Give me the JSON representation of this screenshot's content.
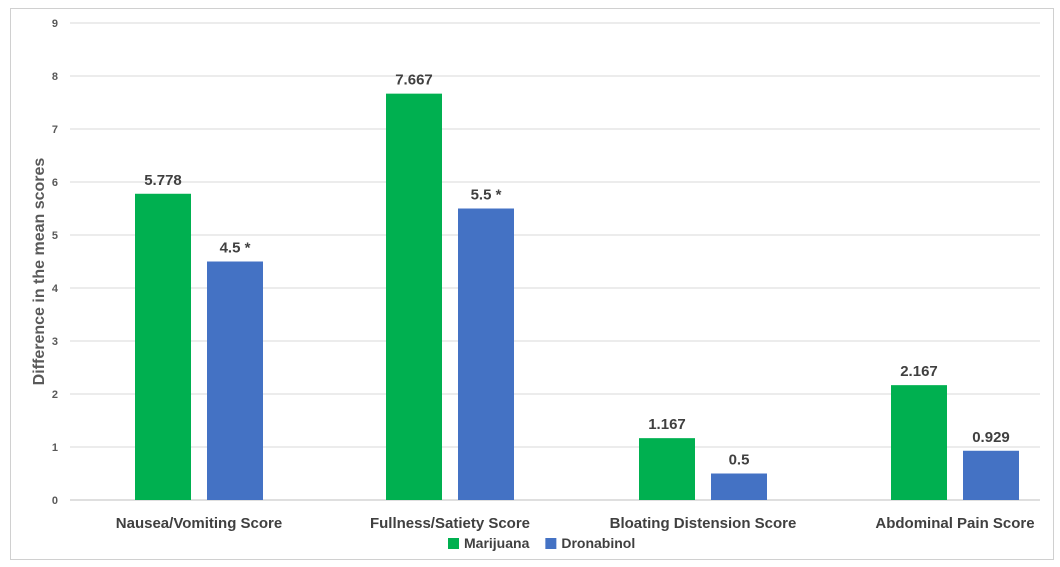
{
  "chart_data": {
    "type": "bar",
    "title": "",
    "xlabel": "",
    "ylabel": "Difference in the mean scores",
    "ylim": [
      0,
      9
    ],
    "yticks": [
      0,
      1,
      2,
      3,
      4,
      5,
      6,
      7,
      8,
      9
    ],
    "grid": true,
    "legend_position": "bottom",
    "categories": [
      "Nausea/Vomiting Score",
      "Fullness/Satiety Score",
      "Bloating Distension Score",
      "Abdominal Pain Score"
    ],
    "series": [
      {
        "name": "Marijuana",
        "color": "#00b050",
        "values": [
          5.778,
          7.667,
          1.167,
          2.167
        ],
        "labels": [
          "5.778",
          "7.667",
          "1.167",
          "2.167"
        ]
      },
      {
        "name": "Dronabinol",
        "color": "#4472c4",
        "values": [
          4.5,
          5.5,
          0.5,
          0.929
        ],
        "labels": [
          "4.5 *",
          "5.5 *",
          "0.5",
          "0.929"
        ]
      }
    ]
  }
}
